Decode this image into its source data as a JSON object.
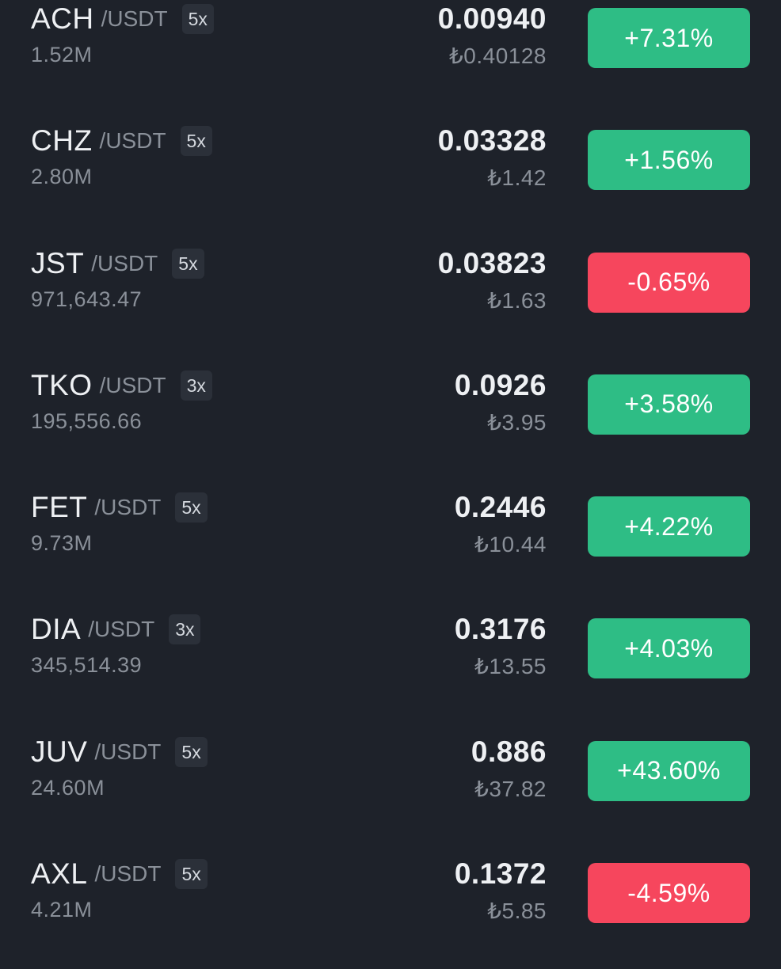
{
  "colors": {
    "background": "#1e222a",
    "positive": "#2ebd85",
    "negative": "#f6465d"
  },
  "markets": [
    {
      "base": "ACH",
      "quote": "/USDT",
      "leverage": "5x",
      "volume": "1.52M",
      "price": "0.00940",
      "fiat": "₺0.40128",
      "change": "+7.31%",
      "direction": "up"
    },
    {
      "base": "CHZ",
      "quote": "/USDT",
      "leverage": "5x",
      "volume": "2.80M",
      "price": "0.03328",
      "fiat": "₺1.42",
      "change": "+1.56%",
      "direction": "up"
    },
    {
      "base": "JST",
      "quote": "/USDT",
      "leverage": "5x",
      "volume": "971,643.47",
      "price": "0.03823",
      "fiat": "₺1.63",
      "change": "-0.65%",
      "direction": "down"
    },
    {
      "base": "TKO",
      "quote": "/USDT",
      "leverage": "3x",
      "volume": "195,556.66",
      "price": "0.0926",
      "fiat": "₺3.95",
      "change": "+3.58%",
      "direction": "up"
    },
    {
      "base": "FET",
      "quote": "/USDT",
      "leverage": "5x",
      "volume": "9.73M",
      "price": "0.2446",
      "fiat": "₺10.44",
      "change": "+4.22%",
      "direction": "up"
    },
    {
      "base": "DIA",
      "quote": "/USDT",
      "leverage": "3x",
      "volume": "345,514.39",
      "price": "0.3176",
      "fiat": "₺13.55",
      "change": "+4.03%",
      "direction": "up"
    },
    {
      "base": "JUV",
      "quote": "/USDT",
      "leverage": "5x",
      "volume": "24.60M",
      "price": "0.886",
      "fiat": "₺37.82",
      "change": "+43.60%",
      "direction": "up"
    },
    {
      "base": "AXL",
      "quote": "/USDT",
      "leverage": "5x",
      "volume": "4.21M",
      "price": "0.1372",
      "fiat": "₺5.85",
      "change": "-4.59%",
      "direction": "down"
    }
  ]
}
